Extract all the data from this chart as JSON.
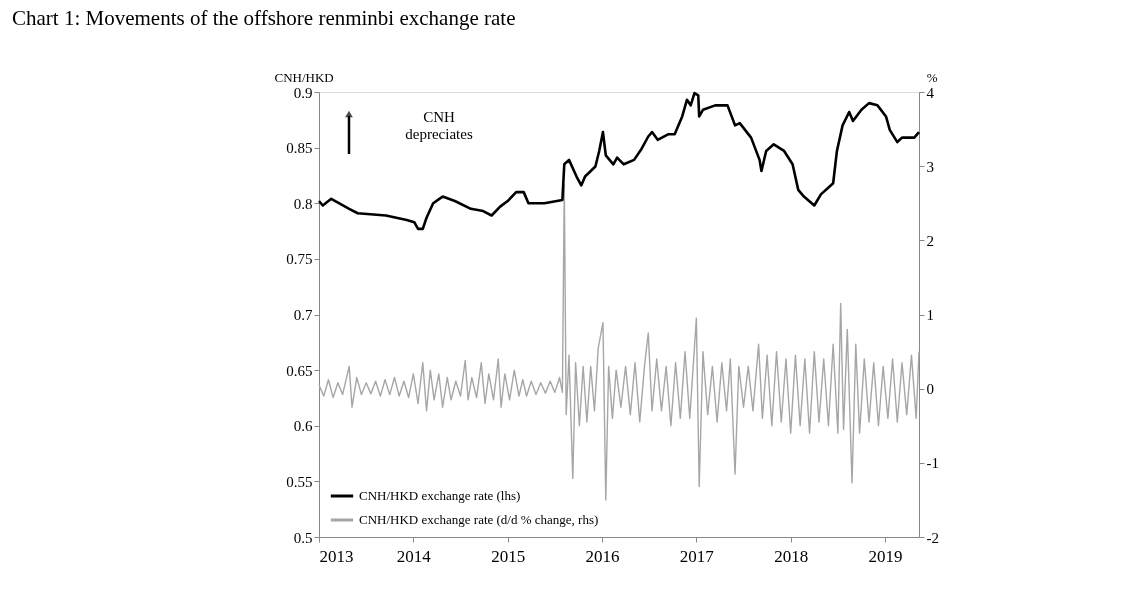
{
  "chart_data": {
    "type": "line",
    "title": "Chart 1: Movements of the offshore renminbi exchange rate",
    "ylabel": "CNH/HKD",
    "y2label": "%",
    "annotations": [
      "CNH depreciates"
    ],
    "xlim": [
      2013,
      2019.36
    ],
    "xticks": [
      2013,
      2014,
      2015,
      2016,
      2017,
      2018,
      2019
    ],
    "ylim": [
      0.5,
      0.9
    ],
    "yticks": [
      0.5,
      0.55,
      0.6,
      0.65,
      0.7,
      0.75,
      0.8,
      0.85,
      0.9
    ],
    "y2lim": [
      -2,
      4
    ],
    "y2ticks": [
      -2,
      -1,
      0,
      1,
      2,
      3,
      4
    ],
    "grid": false,
    "legend": "bottom left",
    "line_style": "solid",
    "marker": "none",
    "series": [
      {
        "name": "CNH/HKD exchange rate (lhs)",
        "color": "#000000",
        "x": [
          2013.0,
          2013.04,
          2013.13,
          2013.32,
          2013.41,
          2013.71,
          2013.93,
          2014.01,
          2014.05,
          2014.1,
          2014.14,
          2014.21,
          2014.31,
          2014.44,
          2014.61,
          2014.74,
          2014.83,
          2014.92,
          2015.0,
          2015.09,
          2015.17,
          2015.22,
          2015.39,
          2015.58,
          2015.6,
          2015.65,
          2015.73,
          2015.78,
          2015.82,
          2015.93,
          2015.97,
          2016.01,
          2016.04,
          2016.12,
          2016.16,
          2016.23,
          2016.34,
          2016.42,
          2016.49,
          2016.53,
          2016.59,
          2016.7,
          2016.77,
          2016.85,
          2016.9,
          2016.94,
          2016.98,
          2017.02,
          2017.03,
          2017.07,
          2017.2,
          2017.33,
          2017.41,
          2017.46,
          2017.58,
          2017.67,
          2017.69,
          2017.74,
          2017.82,
          2017.93,
          2018.02,
          2018.08,
          2018.14,
          2018.25,
          2018.32,
          2018.45,
          2018.49,
          2018.55,
          2018.62,
          2018.66,
          2018.75,
          2018.83,
          2018.92,
          2019.01,
          2019.05,
          2019.13,
          2019.18,
          2019.31,
          2019.36
        ],
        "values": [
          0.802,
          0.798,
          0.804,
          0.795,
          0.791,
          0.789,
          0.785,
          0.783,
          0.777,
          0.777,
          0.787,
          0.8,
          0.806,
          0.802,
          0.795,
          0.793,
          0.789,
          0.797,
          0.802,
          0.81,
          0.81,
          0.8,
          0.8,
          0.803,
          0.835,
          0.839,
          0.824,
          0.816,
          0.824,
          0.833,
          0.847,
          0.864,
          0.843,
          0.835,
          0.841,
          0.835,
          0.839,
          0.849,
          0.86,
          0.864,
          0.857,
          0.862,
          0.862,
          0.878,
          0.893,
          0.888,
          0.899,
          0.897,
          0.878,
          0.884,
          0.888,
          0.888,
          0.87,
          0.872,
          0.859,
          0.839,
          0.829,
          0.847,
          0.853,
          0.847,
          0.835,
          0.812,
          0.806,
          0.798,
          0.808,
          0.818,
          0.847,
          0.87,
          0.882,
          0.874,
          0.884,
          0.89,
          0.888,
          0.878,
          0.866,
          0.855,
          0.859,
          0.859,
          0.864
        ]
      },
      {
        "name": "CNH/HKD exchange rate (d/d % change, rhs)",
        "color": "#a6a6a6",
        "axis": "y2",
        "x": [
          2013.0,
          2013.05,
          2013.1,
          2013.15,
          2013.2,
          2013.25,
          2013.32,
          2013.35,
          2013.4,
          2013.45,
          2013.5,
          2013.55,
          2013.6,
          2013.65,
          2013.7,
          2013.75,
          2013.8,
          2013.85,
          2013.9,
          2013.95,
          2014.0,
          2014.05,
          2014.1,
          2014.14,
          2014.18,
          2014.22,
          2014.27,
          2014.31,
          2014.36,
          2014.4,
          2014.45,
          2014.5,
          2014.55,
          2014.58,
          2014.62,
          2014.67,
          2014.72,
          2014.76,
          2014.8,
          2014.85,
          2014.9,
          2014.93,
          2014.97,
          2015.02,
          2015.07,
          2015.12,
          2015.16,
          2015.2,
          2015.25,
          2015.3,
          2015.35,
          2015.4,
          2015.45,
          2015.5,
          2015.55,
          2015.58,
          2015.6,
          2015.62,
          2015.65,
          2015.69,
          2015.72,
          2015.76,
          2015.8,
          2015.84,
          2015.88,
          2015.92,
          2015.96,
          2016.01,
          2016.04,
          2016.07,
          2016.11,
          2016.15,
          2016.2,
          2016.25,
          2016.3,
          2016.35,
          2016.4,
          2016.45,
          2016.49,
          2016.53,
          2016.58,
          2016.63,
          2016.68,
          2016.73,
          2016.78,
          2016.83,
          2016.88,
          2016.93,
          2017.0,
          2017.03,
          2017.07,
          2017.12,
          2017.17,
          2017.22,
          2017.27,
          2017.32,
          2017.36,
          2017.41,
          2017.45,
          2017.5,
          2017.55,
          2017.6,
          2017.66,
          2017.7,
          2017.75,
          2017.8,
          2017.85,
          2017.9,
          2017.95,
          2018.0,
          2018.05,
          2018.1,
          2018.15,
          2018.2,
          2018.25,
          2018.3,
          2018.35,
          2018.4,
          2018.45,
          2018.5,
          2018.53,
          2018.56,
          2018.6,
          2018.65,
          2018.69,
          2018.73,
          2018.78,
          2018.83,
          2018.88,
          2018.93,
          2018.98,
          2019.03,
          2019.08,
          2019.13,
          2019.18,
          2019.23,
          2019.28,
          2019.33,
          2019.36
        ],
        "values": [
          0.05,
          -0.1,
          0.12,
          -0.12,
          0.08,
          -0.08,
          0.3,
          -0.25,
          0.15,
          -0.08,
          0.08,
          -0.07,
          0.1,
          -0.1,
          0.12,
          -0.08,
          0.15,
          -0.1,
          0.1,
          -0.12,
          0.2,
          -0.2,
          0.35,
          -0.3,
          0.25,
          -0.15,
          0.2,
          -0.25,
          0.15,
          -0.15,
          0.1,
          -0.1,
          0.38,
          -0.15,
          0.15,
          -0.12,
          0.35,
          -0.2,
          0.2,
          -0.15,
          0.4,
          -0.25,
          0.2,
          -0.15,
          0.25,
          -0.1,
          0.12,
          -0.1,
          0.1,
          -0.08,
          0.08,
          -0.06,
          0.1,
          -0.05,
          0.15,
          -0.05,
          2.75,
          -0.35,
          0.45,
          -1.21,
          0.35,
          -0.5,
          0.3,
          -0.45,
          0.3,
          -0.3,
          0.55,
          0.89,
          -1.5,
          0.3,
          -0.4,
          0.25,
          -0.25,
          0.3,
          -0.35,
          0.35,
          -0.45,
          0.3,
          0.75,
          -0.3,
          0.4,
          -0.3,
          0.3,
          -0.5,
          0.35,
          -0.4,
          0.5,
          -0.4,
          0.95,
          -1.32,
          0.5,
          -0.35,
          0.3,
          -0.45,
          0.35,
          -0.3,
          0.4,
          -1.15,
          0.3,
          -0.25,
          0.3,
          -0.3,
          0.6,
          -0.4,
          0.45,
          -0.5,
          0.5,
          -0.45,
          0.4,
          -0.6,
          0.45,
          -0.5,
          0.4,
          -0.6,
          0.5,
          -0.45,
          0.4,
          -0.5,
          0.6,
          -0.6,
          1.15,
          -0.55,
          0.8,
          -1.27,
          0.6,
          -0.6,
          0.4,
          -0.45,
          0.35,
          -0.5,
          0.3,
          -0.4,
          0.4,
          -0.45,
          0.35,
          -0.35,
          0.45,
          -0.4,
          0.5
        ]
      }
    ]
  }
}
